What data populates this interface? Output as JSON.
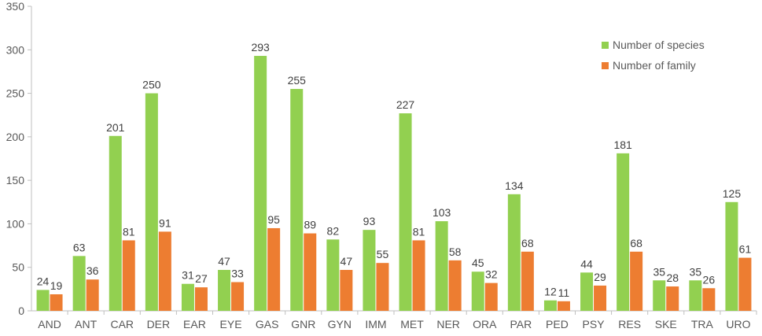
{
  "chart_data": {
    "type": "bar",
    "title": "",
    "xlabel": "",
    "ylabel": "",
    "ylim": [
      0,
      350
    ],
    "yticks": [
      0,
      50,
      100,
      150,
      200,
      250,
      300,
      350
    ],
    "grid": false,
    "legend_position": "top-right",
    "categories": [
      "AND",
      "ANT",
      "CAR",
      "DER",
      "EAR",
      "EYE",
      "GAS",
      "GNR",
      "GYN",
      "IMM",
      "MET",
      "NER",
      "ORA",
      "PAR",
      "PED",
      "PSY",
      "RES",
      "SKE",
      "TRA",
      "URO"
    ],
    "series": [
      {
        "name": "Number of species",
        "color": "#92D050",
        "values": [
          24,
          63,
          201,
          250,
          31,
          47,
          293,
          255,
          82,
          93,
          227,
          103,
          45,
          134,
          12,
          44,
          181,
          35,
          35,
          125
        ]
      },
      {
        "name": "Number of family",
        "color": "#ED7D31",
        "values": [
          19,
          36,
          81,
          91,
          27,
          33,
          95,
          89,
          47,
          55,
          81,
          58,
          32,
          68,
          11,
          29,
          68,
          28,
          26,
          61
        ]
      }
    ]
  }
}
